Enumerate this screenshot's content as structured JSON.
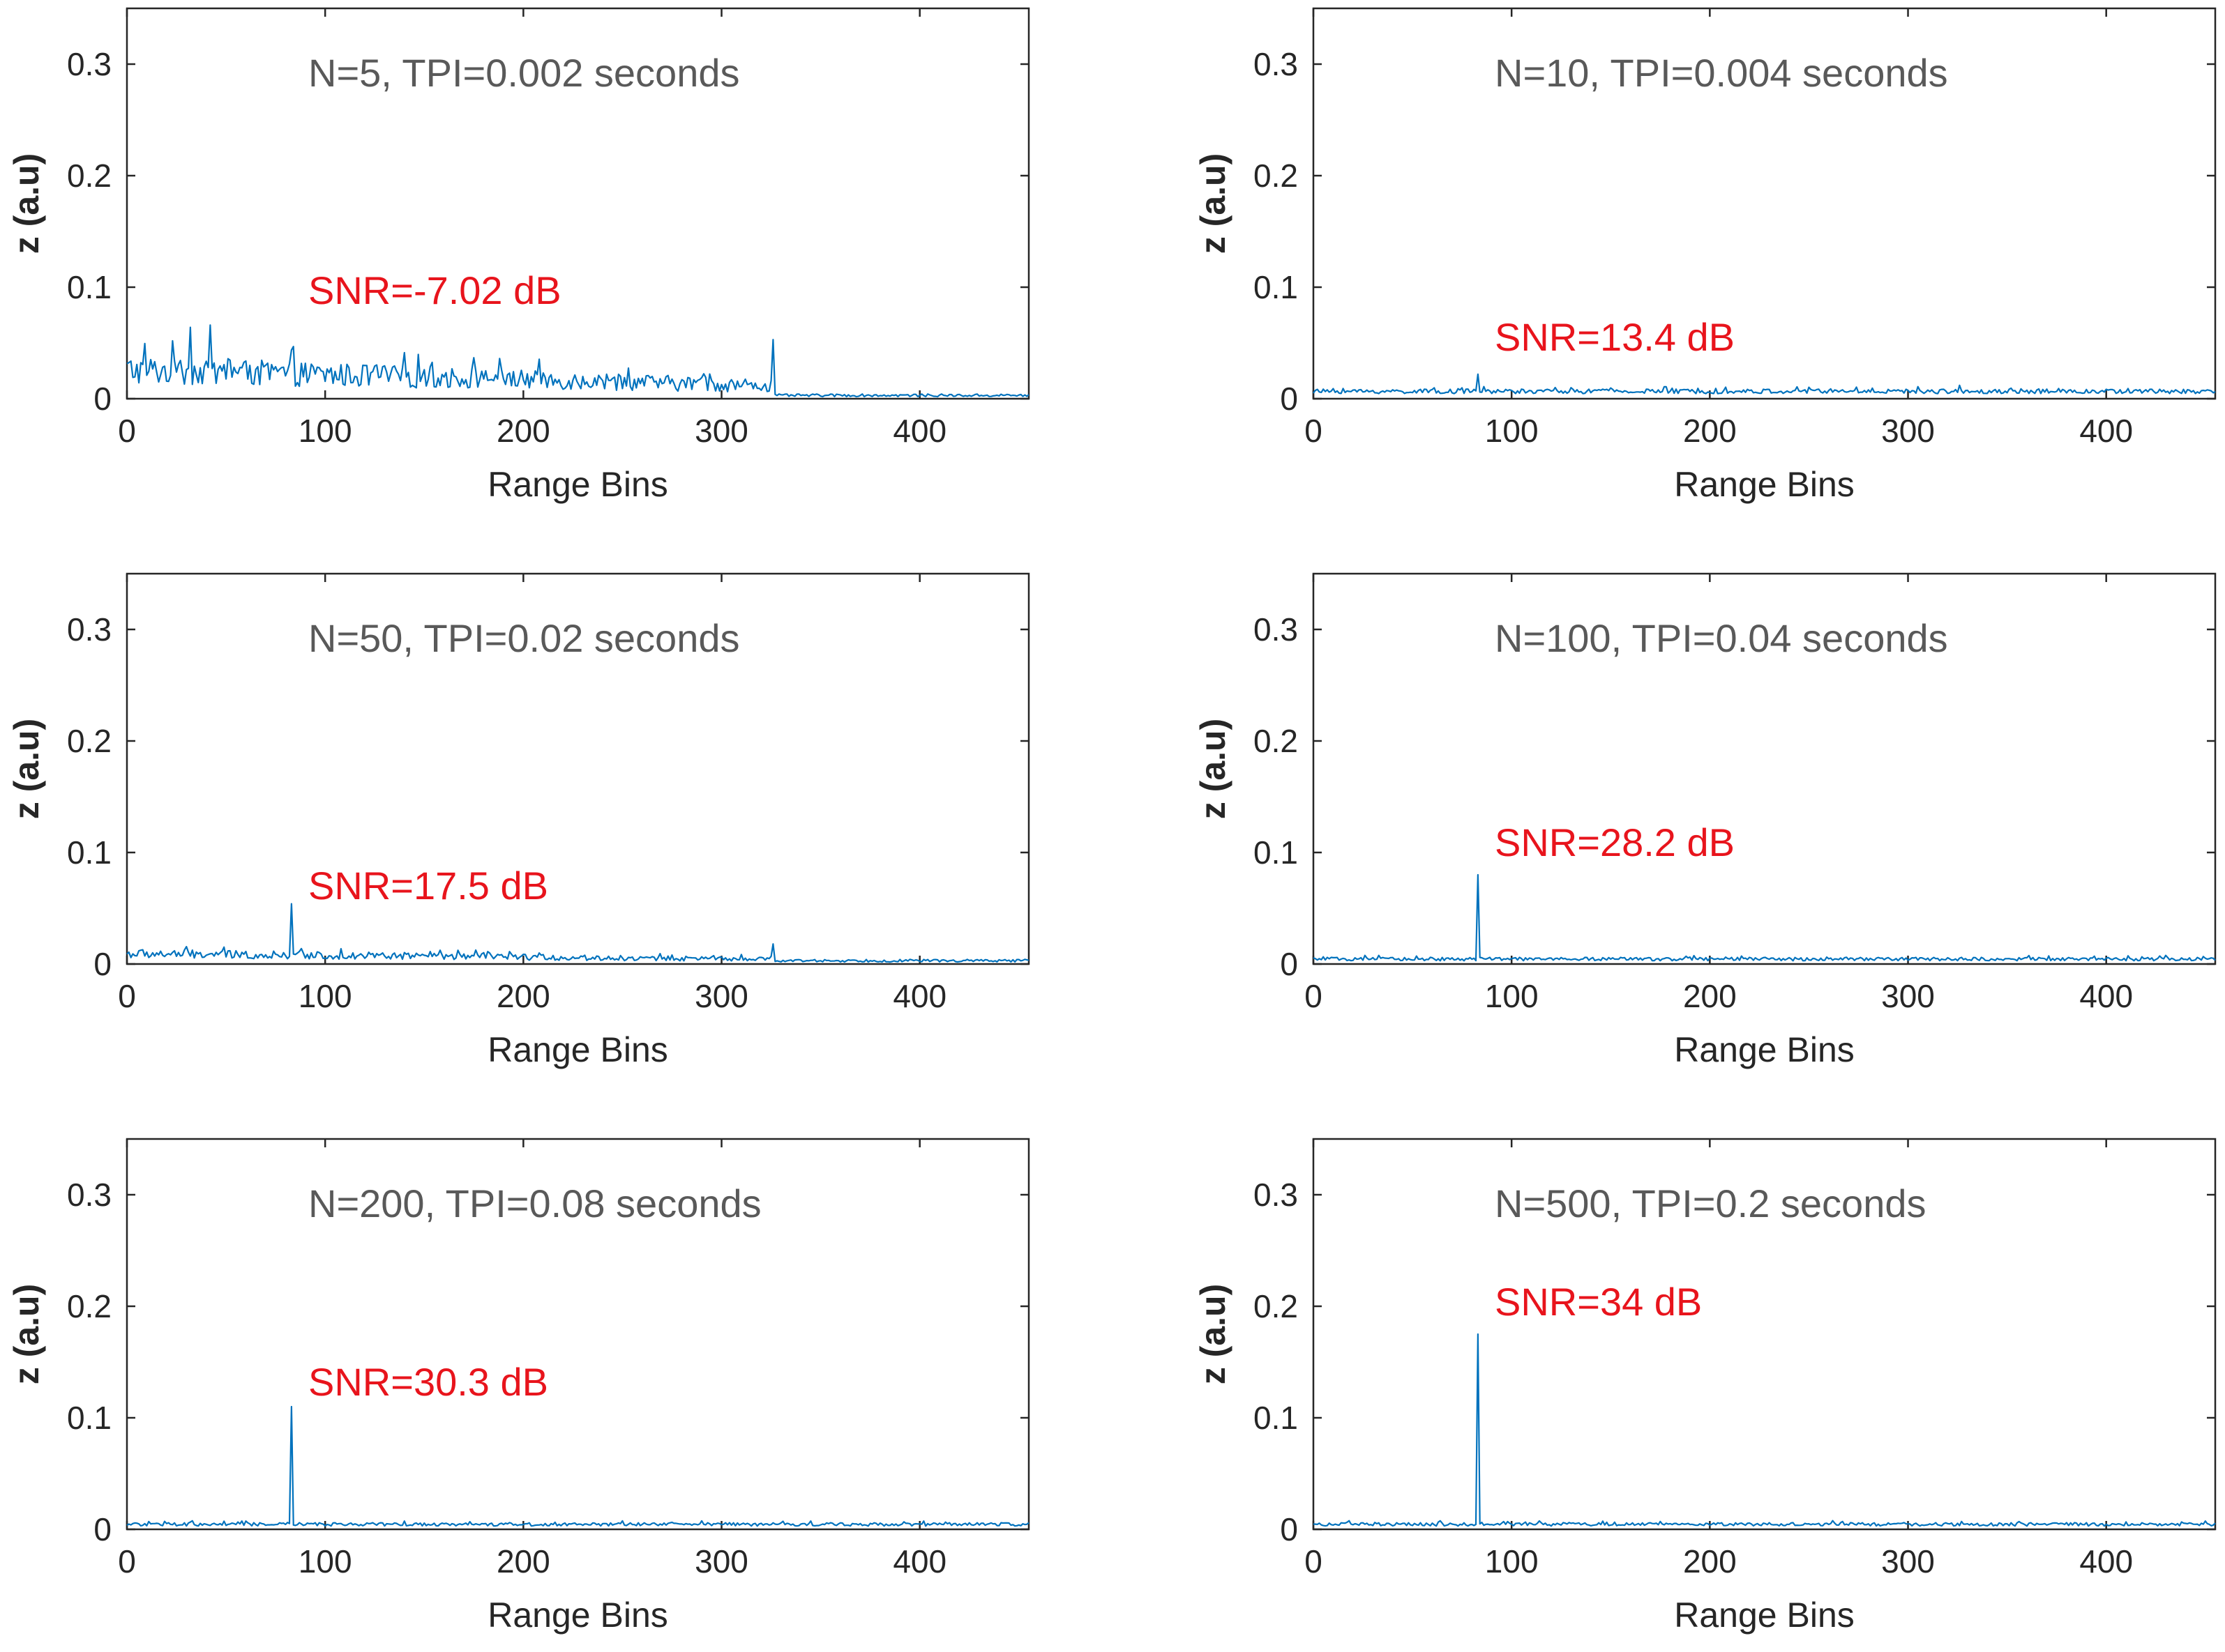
{
  "colors": {
    "series": "#0072bd",
    "annotation": "#e8141c",
    "title": "#595959",
    "axis": "#262626"
  },
  "chart_data": [
    {
      "type": "line",
      "title": "N=5, TPI=0.002 seconds",
      "annotation": "SNR=-7.02 dB",
      "xlabel": "Range Bins",
      "ylabel": "z (a.u)",
      "xlim": [
        0,
        455
      ],
      "ylim": [
        0,
        0.35
      ],
      "xticks": [
        0,
        100,
        200,
        300,
        400
      ],
      "yticks": [
        0,
        0.1,
        0.2,
        0.3
      ],
      "xtick_labels": [
        "0",
        "100",
        "200",
        "300",
        "400"
      ],
      "ytick_labels": [
        "0",
        "0.1",
        "0.2",
        "0.3"
      ],
      "signal": {
        "cutoff_bin": 326,
        "noise_base": 0.022,
        "noise_amp": 0.026,
        "tail": 0.003,
        "peaks": [
          {
            "bin": 326,
            "value": 0.053
          },
          {
            "bin": 42,
            "value": 0.066
          },
          {
            "bin": 32,
            "value": 0.064
          }
        ]
      }
    },
    {
      "type": "line",
      "title": "N=10, TPI=0.004 seconds",
      "annotation": "SNR=13.4 dB",
      "xlabel": "Range Bins",
      "ylabel": "z (a.u)",
      "xlim": [
        0,
        455
      ],
      "ylim": [
        0,
        0.35
      ],
      "xticks": [
        0,
        100,
        200,
        300,
        400
      ],
      "yticks": [
        0,
        0.1,
        0.2,
        0.3
      ],
      "xtick_labels": [
        "0",
        "100",
        "200",
        "300",
        "400"
      ],
      "ytick_labels": [
        "0",
        "0.1",
        "0.2",
        "0.3"
      ],
      "signal": {
        "cutoff_bin": 455,
        "noise_base": 0.006,
        "noise_amp": 0.004,
        "tail": 0.004,
        "peaks": [
          {
            "bin": 83,
            "value": 0.022
          },
          {
            "bin": 326,
            "value": 0.012
          }
        ]
      }
    },
    {
      "type": "line",
      "title": "N=50, TPI=0.02 seconds",
      "annotation": "SNR=17.5 dB",
      "xlabel": "Range Bins",
      "ylabel": "z (a.u)",
      "xlim": [
        0,
        455
      ],
      "ylim": [
        0,
        0.35
      ],
      "xticks": [
        0,
        100,
        200,
        300,
        400
      ],
      "yticks": [
        0,
        0.1,
        0.2,
        0.3
      ],
      "xtick_labels": [
        "0",
        "100",
        "200",
        "300",
        "400"
      ],
      "ytick_labels": [
        "0",
        "0.1",
        "0.2",
        "0.3"
      ],
      "signal": {
        "cutoff_bin": 326,
        "noise_base": 0.008,
        "noise_amp": 0.008,
        "tail": 0.003,
        "peaks": [
          {
            "bin": 83,
            "value": 0.054
          },
          {
            "bin": 326,
            "value": 0.018
          }
        ]
      }
    },
    {
      "type": "line",
      "title": "N=100, TPI=0.04 seconds",
      "annotation": "SNR=28.2 dB",
      "xlabel": "Range Bins",
      "ylabel": "z (a.u)",
      "xlim": [
        0,
        455
      ],
      "ylim": [
        0,
        0.35
      ],
      "xticks": [
        0,
        100,
        200,
        300,
        400
      ],
      "yticks": [
        0,
        0.1,
        0.2,
        0.3
      ],
      "xtick_labels": [
        "0",
        "100",
        "200",
        "300",
        "400"
      ],
      "ytick_labels": [
        "0",
        "0.1",
        "0.2",
        "0.3"
      ],
      "signal": {
        "cutoff_bin": 455,
        "noise_base": 0.004,
        "noise_amp": 0.003,
        "tail": 0.003,
        "peaks": [
          {
            "bin": 83,
            "value": 0.08
          }
        ]
      }
    },
    {
      "type": "line",
      "title": "N=200, TPI=0.08 seconds",
      "annotation": "SNR=30.3 dB",
      "xlabel": "Range Bins",
      "ylabel": "z (a.u)",
      "xlim": [
        0,
        455
      ],
      "ylim": [
        0,
        0.35
      ],
      "xticks": [
        0,
        100,
        200,
        300,
        400
      ],
      "yticks": [
        0,
        0.1,
        0.2,
        0.3
      ],
      "xtick_labels": [
        "0",
        "100",
        "200",
        "300",
        "400"
      ],
      "ytick_labels": [
        "0",
        "0.1",
        "0.2",
        "0.3"
      ],
      "signal": {
        "cutoff_bin": 455,
        "noise_base": 0.004,
        "noise_amp": 0.003,
        "tail": 0.003,
        "peaks": [
          {
            "bin": 83,
            "value": 0.11
          }
        ]
      }
    },
    {
      "type": "line",
      "title": "N=500, TPI=0.2 seconds",
      "annotation": "SNR=34 dB",
      "xlabel": "Range Bins",
      "ylabel": "z (a.u)",
      "xlim": [
        0,
        455
      ],
      "ylim": [
        0,
        0.35
      ],
      "xticks": [
        0,
        100,
        200,
        300,
        400
      ],
      "yticks": [
        0,
        0.1,
        0.2,
        0.3
      ],
      "xtick_labels": [
        "0",
        "100",
        "200",
        "300",
        "400"
      ],
      "ytick_labels": [
        "0",
        "0.1",
        "0.2",
        "0.3"
      ],
      "signal": {
        "cutoff_bin": 455,
        "noise_base": 0.004,
        "noise_amp": 0.003,
        "tail": 0.003,
        "peaks": [
          {
            "bin": 83,
            "value": 0.175
          }
        ]
      }
    }
  ]
}
